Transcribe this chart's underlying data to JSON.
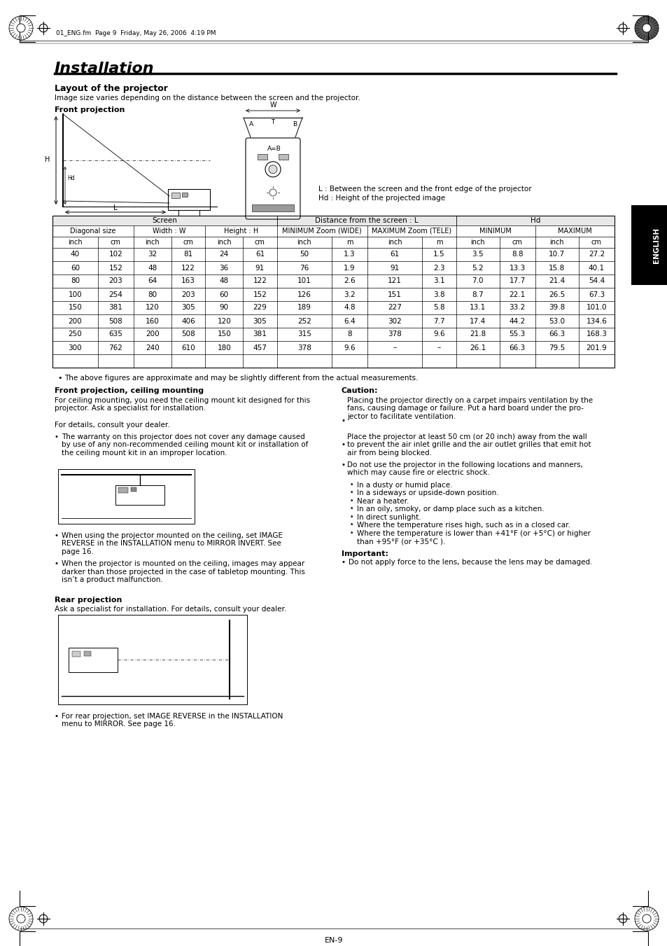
{
  "title": "Installation",
  "subtitle": "Layout of the projector",
  "subtitle_desc": "Image size varies depending on the distance between the screen and the projector.",
  "section1": "Front projection",
  "header_text": "01_ENG.fm  Page 9  Friday, May 26, 2006  4:19 PM",
  "table_headers_row3": [
    "inch",
    "cm",
    "inch",
    "cm",
    "inch",
    "cm",
    "inch",
    "m",
    "inch",
    "m",
    "inch",
    "cm",
    "inch",
    "cm"
  ],
  "table_data": [
    [
      "40",
      "102",
      "32",
      "81",
      "24",
      "61",
      "50",
      "1.3",
      "61",
      "1.5",
      "3.5",
      "8.8",
      "10.7",
      "27.2"
    ],
    [
      "60",
      "152",
      "48",
      "122",
      "36",
      "91",
      "76",
      "1.9",
      "91",
      "2.3",
      "5.2",
      "13.3",
      "15.8",
      "40.1"
    ],
    [
      "80",
      "203",
      "64",
      "163",
      "48",
      "122",
      "101",
      "2.6",
      "121",
      "3.1",
      "7.0",
      "17.7",
      "21.4",
      "54.4"
    ],
    [
      "100",
      "254",
      "80",
      "203",
      "60",
      "152",
      "126",
      "3.2",
      "151",
      "3.8",
      "8.7",
      "22.1",
      "26.5",
      "67.3"
    ],
    [
      "150",
      "381",
      "120",
      "305",
      "90",
      "229",
      "189",
      "4.8",
      "227",
      "5.8",
      "13.1",
      "33.2",
      "39.8",
      "101.0"
    ],
    [
      "200",
      "508",
      "160",
      "406",
      "120",
      "305",
      "252",
      "6.4",
      "302",
      "7.7",
      "17.4",
      "44.2",
      "53.0",
      "134.6"
    ],
    [
      "250",
      "635",
      "200",
      "508",
      "150",
      "381",
      "315",
      "8",
      "378",
      "9.6",
      "21.8",
      "55.3",
      "66.3",
      "168.3"
    ],
    [
      "300",
      "762",
      "240",
      "610",
      "180",
      "457",
      "378",
      "9.6",
      "–",
      "–",
      "26.1",
      "66.3",
      "79.5",
      "201.9"
    ]
  ],
  "note_table": "The above figures are approximate and may be slightly different from the actual measurements.",
  "section2_title": "Front projection, ceiling mounting",
  "section2_text1a": "For ceiling mounting, you need the ceiling mount kit designed for this",
  "section2_text1b": "projector. Ask a specialist for installation.",
  "section2_text2": "For details, consult your dealer.",
  "section2_bullet1a": "The warranty on this projector does not cover any damage caused",
  "section2_bullet1b": "by use of any non-recommended ceiling mount kit or installation of",
  "section2_bullet1c": "the ceiling mount kit in an improper location.",
  "section2_bullet2a": "When using the projector mounted on the ceiling, set IMAGE",
  "section2_bullet2b": "REVERSE in the INSTALLATION menu to MIRROR INVERT. See",
  "section2_bullet2c": "page 16.",
  "section2_bullet3a": "When the projector is mounted on the ceiling, images may appear",
  "section2_bullet3b": "darker than those projected in the case of tabletop mounting. This",
  "section2_bullet3c": "isn’t a product malfunction.",
  "caution_title": "Caution:",
  "caution_bullet1a": "Placing the projector directly on a carpet impairs ventilation by the",
  "caution_bullet1b": "fans, causing damage or failure. Put a hard board under the pro-",
  "caution_bullet1c": "jector to facilitate ventilation.",
  "caution_bullet2a": "Place the projector at least 50 cm (or 20 inch) away from the wall",
  "caution_bullet2b": "to prevent the air inlet grille and the air outlet grilles that emit hot",
  "caution_bullet2c": "air from being blocked.",
  "caution_bullet3a": "Do not use the projector in the following locations and manners,",
  "caution_bullet3b": "which may cause fire or electric shock.",
  "caution_sub1": "In a dusty or humid place.",
  "caution_sub2": "In a sideways or upside-down position.",
  "caution_sub3": "Near a heater.",
  "caution_sub4": "In an oily, smoky, or damp place such as a kitchen.",
  "caution_sub5": "In direct sunlight.",
  "caution_sub6": "Where the temperature rises high, such as in a closed car.",
  "caution_sub7a": "Where the temperature is lower than +41°F (or +5°C) or higher",
  "caution_sub7b": "than +95°F (or +35°C ).",
  "important_title": "Important:",
  "important_bullet": "Do not apply force to the lens, because the lens may be damaged.",
  "section3_title": "Rear projection",
  "section3_text": "Ask a specialist for installation. For details, consult your dealer.",
  "section3_bullet1a": "For rear projection, set IMAGE REVERSE in the INSTALLATION",
  "section3_bullet1b": "menu to MIRROR. See page 16.",
  "legend1": "L : Between the screen and the front edge of the projector",
  "legend2": "Hd : Height of the projected image",
  "page_num": "EN-9",
  "english_label": "ENGLISH",
  "bg_color": "#ffffff"
}
